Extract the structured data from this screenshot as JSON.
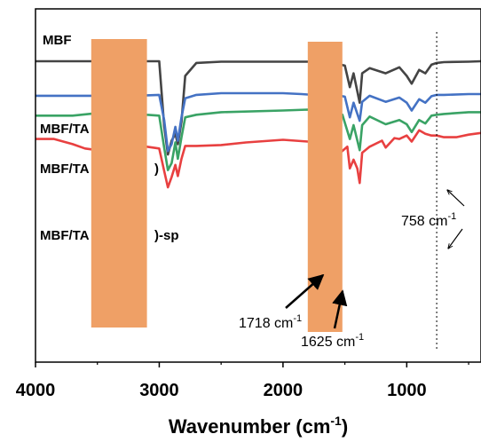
{
  "chart_data": {
    "type": "line",
    "xlabel": "Wavenumber (cm",
    "xlabel_sup": "-1",
    "xlabel_close": ")",
    "xlim": [
      4000,
      400
    ],
    "x_ticks": [
      {
        "value": 4000,
        "label": "4000"
      },
      {
        "value": 3000,
        "label": "3000"
      },
      {
        "value": 2000,
        "label": "2000"
      },
      {
        "value": 1000,
        "label": "1000"
      }
    ],
    "series": [
      {
        "name": "MBF",
        "color": "#444444",
        "baseline": 5.0,
        "points": [
          [
            4000,
            5.0
          ],
          [
            3600,
            5.0
          ],
          [
            3100,
            5.0
          ],
          [
            3000,
            5.0
          ],
          [
            2960,
            -2.5
          ],
          [
            2930,
            -5.8
          ],
          [
            2900,
            -4.2
          ],
          [
            2870,
            -3.4
          ],
          [
            2850,
            -4.6
          ],
          [
            2820,
            -2.0
          ],
          [
            2790,
            3.3
          ],
          [
            2700,
            4.8
          ],
          [
            2500,
            4.95
          ],
          [
            1800,
            4.95
          ],
          [
            1720,
            4.9
          ],
          [
            1680,
            4.6
          ],
          [
            1600,
            4.8
          ],
          [
            1500,
            4.5
          ],
          [
            1460,
            2.0
          ],
          [
            1430,
            3.6
          ],
          [
            1380,
            0.2
          ],
          [
            1360,
            3.6
          ],
          [
            1300,
            4.2
          ],
          [
            1170,
            3.6
          ],
          [
            1060,
            4.3
          ],
          [
            1000,
            3.3
          ],
          [
            960,
            2.4
          ],
          [
            900,
            4.0
          ],
          [
            850,
            3.6
          ],
          [
            800,
            4.6
          ],
          [
            758,
            4.8
          ],
          [
            700,
            4.9
          ],
          [
            500,
            4.95
          ],
          [
            400,
            5.0
          ]
        ]
      },
      {
        "name": "MBF/TA",
        "color": "#4472C4",
        "baseline": 1.05,
        "points": [
          [
            4000,
            1.0
          ],
          [
            3500,
            1.0
          ],
          [
            3100,
            1.05
          ],
          [
            3000,
            1.1
          ],
          [
            2960,
            -1.8
          ],
          [
            2930,
            -5.4
          ],
          [
            2900,
            -4.6
          ],
          [
            2870,
            -2.6
          ],
          [
            2850,
            -4.2
          ],
          [
            2820,
            -1.5
          ],
          [
            2790,
            0.7
          ],
          [
            2700,
            1.1
          ],
          [
            2500,
            1.3
          ],
          [
            2000,
            1.3
          ],
          [
            1850,
            1.2
          ],
          [
            1800,
            1.15
          ],
          [
            1700,
            1.2
          ],
          [
            1600,
            1.15
          ],
          [
            1500,
            0.9
          ],
          [
            1460,
            -1.5
          ],
          [
            1430,
            0.2
          ],
          [
            1380,
            -1.9
          ],
          [
            1360,
            0.3
          ],
          [
            1300,
            1.0
          ],
          [
            1170,
            0.3
          ],
          [
            1060,
            0.8
          ],
          [
            1000,
            0.2
          ],
          [
            960,
            -0.7
          ],
          [
            900,
            0.6
          ],
          [
            850,
            0.2
          ],
          [
            800,
            0.95
          ],
          [
            758,
            1.1
          ],
          [
            700,
            1.1
          ],
          [
            500,
            1.2
          ],
          [
            400,
            1.2
          ]
        ]
      },
      {
        "name": "MBF/TA",
        "color": "#3AA365",
        "baseline": -1.3,
        "points": [
          [
            4000,
            -1.3
          ],
          [
            3700,
            -1.3
          ],
          [
            3500,
            -1.0
          ],
          [
            3300,
            -0.8
          ],
          [
            3100,
            -1.2
          ],
          [
            3000,
            -1.3
          ],
          [
            2960,
            -5.0
          ],
          [
            2930,
            -7.6
          ],
          [
            2900,
            -6.8
          ],
          [
            2870,
            -4.4
          ],
          [
            2850,
            -6.3
          ],
          [
            2820,
            -3.8
          ],
          [
            2790,
            -1.5
          ],
          [
            2700,
            -1.2
          ],
          [
            2500,
            -0.9
          ],
          [
            2000,
            -0.7
          ],
          [
            1800,
            -0.6
          ],
          [
            1700,
            -0.7
          ],
          [
            1600,
            -0.9
          ],
          [
            1520,
            -1.2
          ],
          [
            1460,
            -4.0
          ],
          [
            1430,
            -2.4
          ],
          [
            1380,
            -5.3
          ],
          [
            1360,
            -2.4
          ],
          [
            1300,
            -1.4
          ],
          [
            1170,
            -2.3
          ],
          [
            1060,
            -1.8
          ],
          [
            1000,
            -2.3
          ],
          [
            960,
            -3.2
          ],
          [
            900,
            -1.8
          ],
          [
            850,
            -2.2
          ],
          [
            800,
            -1.3
          ],
          [
            758,
            -1.2
          ],
          [
            700,
            -1.1
          ],
          [
            500,
            -0.9
          ],
          [
            400,
            -0.9
          ]
        ]
      },
      {
        "name": "MBF/TA",
        "color": "#E84040",
        "baseline": -4.0,
        "points": [
          [
            4000,
            -4.0
          ],
          [
            3850,
            -4.0
          ],
          [
            3700,
            -4.6
          ],
          [
            3600,
            -5.1
          ],
          [
            3500,
            -5.3
          ],
          [
            3300,
            -5.2
          ],
          [
            3100,
            -4.9
          ],
          [
            3000,
            -5.1
          ],
          [
            2960,
            -7.7
          ],
          [
            2930,
            -9.6
          ],
          [
            2900,
            -8.4
          ],
          [
            2870,
            -7.0
          ],
          [
            2850,
            -8.3
          ],
          [
            2820,
            -6.3
          ],
          [
            2790,
            -4.8
          ],
          [
            2700,
            -4.8
          ],
          [
            2500,
            -4.7
          ],
          [
            2300,
            -4.4
          ],
          [
            2000,
            -4.1
          ],
          [
            1800,
            -4.3
          ],
          [
            1720,
            -4.1
          ],
          [
            1650,
            -5.4
          ],
          [
            1600,
            -5.5
          ],
          [
            1560,
            -5.7
          ],
          [
            1530,
            -5.5
          ],
          [
            1480,
            -4.9
          ],
          [
            1460,
            -7.4
          ],
          [
            1430,
            -6.4
          ],
          [
            1400,
            -7.4
          ],
          [
            1380,
            -9.1
          ],
          [
            1360,
            -5.6
          ],
          [
            1300,
            -4.9
          ],
          [
            1200,
            -4.2
          ],
          [
            1170,
            -5.0
          ],
          [
            1100,
            -3.9
          ],
          [
            1060,
            -4.0
          ],
          [
            1000,
            -3.6
          ],
          [
            960,
            -4.3
          ],
          [
            900,
            -3.0
          ],
          [
            850,
            -3.4
          ],
          [
            800,
            -3.6
          ],
          [
            758,
            -3.6
          ],
          [
            700,
            -3.8
          ],
          [
            600,
            -3.8
          ],
          [
            500,
            -3.5
          ],
          [
            400,
            -3.3
          ]
        ]
      }
    ],
    "labels": [
      {
        "text": "MBF",
        "series": 0
      },
      {
        "text": "MBF/TA",
        "series": 1
      },
      {
        "text": "MBF/TA",
        "suffix": ")",
        "series": 2
      },
      {
        "text": "MBF/TA",
        "suffix": ")-sp",
        "series": 3
      }
    ],
    "highlight_bands": [
      {
        "x_start": 3550,
        "x_end": 3100,
        "color": "#EFA066"
      },
      {
        "x_start": 1800,
        "x_end": 1520,
        "color": "#EFA066"
      }
    ],
    "reference_line": {
      "x": 758,
      "style": "dotted"
    },
    "annotations": [
      {
        "text": "1718 cm",
        "sup": "-1",
        "x": 1718
      },
      {
        "text": "1625 cm",
        "sup": "-1",
        "x": 1625
      },
      {
        "text": "758 cm",
        "sup": "-1",
        "x": 758
      }
    ]
  }
}
